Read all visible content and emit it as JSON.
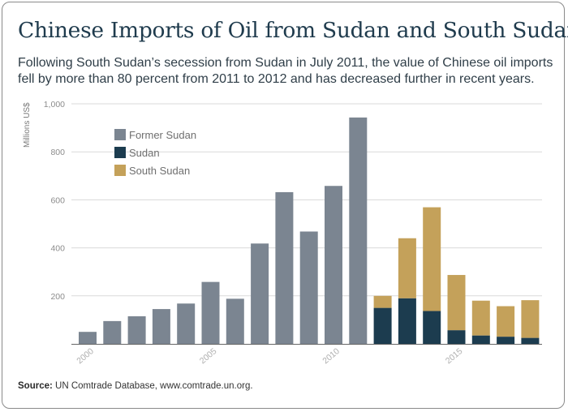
{
  "colors": {
    "former_sudan": "#7b8591",
    "sudan": "#1c3c4f",
    "south_sudan": "#c4a15a",
    "grid": "#d9d9d9",
    "axis": "#666666"
  },
  "source": {
    "label": "Source:",
    "text": " UN Comtrade Database, www.comtrade.un.org."
  },
  "chart_data": {
    "type": "bar",
    "stacked": true,
    "title": "Chinese Imports of Oil from Sudan and South Sudan",
    "subtitle": "Following South Sudan’s secession from Sudan in July 2011, the value of Chinese oil imports fell by more than 80 percent from 2011 to 2012 and has decreased further in recent years.",
    "ylabel": "Millions US$",
    "xlabel": "",
    "ylim": [
      0,
      1000
    ],
    "yticks": [
      {
        "value": 200,
        "label": "200"
      },
      {
        "value": 400,
        "label": "400"
      },
      {
        "value": 600,
        "label": "600"
      },
      {
        "value": 800,
        "label": "800"
      },
      {
        "value": 1000,
        "label": "1,000"
      }
    ],
    "categories": [
      2000,
      2001,
      2002,
      2003,
      2004,
      2005,
      2006,
      2007,
      2008,
      2009,
      2010,
      2011,
      2012,
      2013,
      2014,
      2015,
      2016,
      2017,
      2018
    ],
    "x_tick_labels": [
      {
        "year": 2000,
        "label": "2000"
      },
      {
        "year": 2005,
        "label": "2005"
      },
      {
        "year": 2010,
        "label": "2010"
      },
      {
        "year": 2015,
        "label": "2015"
      }
    ],
    "legend_position": "top-left",
    "series": [
      {
        "name": "Former Sudan",
        "color_key": "former_sudan",
        "values": [
          50,
          95,
          115,
          145,
          168,
          258,
          188,
          418,
          632,
          468,
          658,
          943,
          0,
          0,
          0,
          0,
          0,
          0,
          0
        ]
      },
      {
        "name": "Sudan",
        "color_key": "sudan",
        "values": [
          0,
          0,
          0,
          0,
          0,
          0,
          0,
          0,
          0,
          0,
          0,
          0,
          150,
          190,
          137,
          57,
          35,
          30,
          25
        ]
      },
      {
        "name": "South Sudan",
        "color_key": "south_sudan",
        "values": [
          0,
          0,
          0,
          0,
          0,
          0,
          0,
          0,
          0,
          0,
          0,
          0,
          50,
          250,
          432,
          230,
          145,
          127,
          157
        ]
      }
    ]
  }
}
